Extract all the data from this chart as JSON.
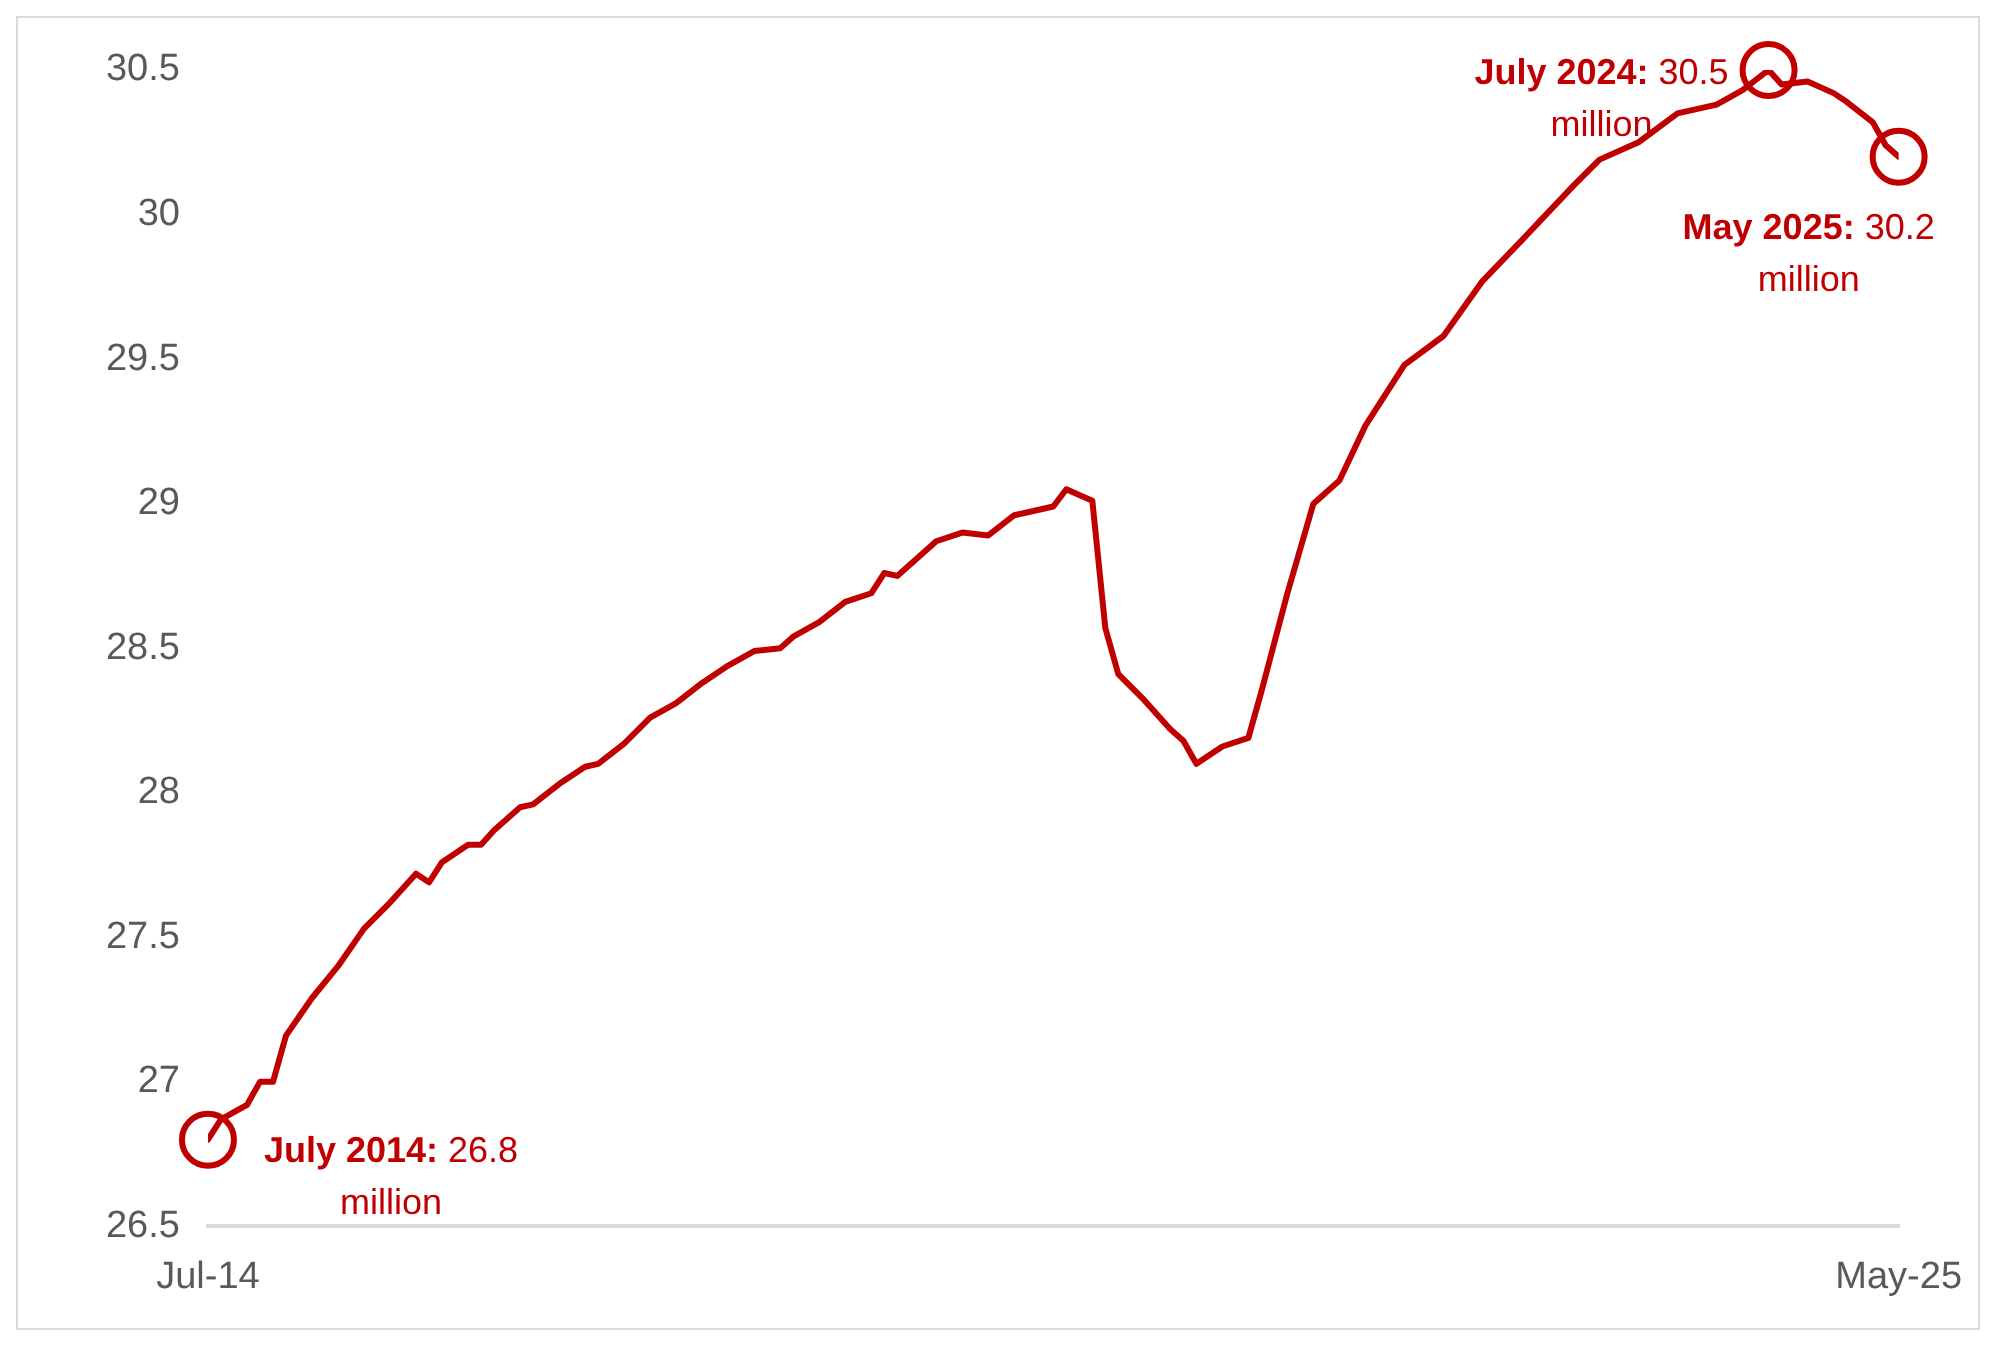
{
  "chart_data": {
    "type": "line",
    "series": [
      {
        "color": "#c00000",
        "x": [
          "2014-07",
          "2014-08",
          "2014-10",
          "2014-11",
          "2014-12",
          "2015-01",
          "2015-03",
          "2015-05",
          "2015-07",
          "2015-09",
          "2015-11",
          "2015-12",
          "2016-01",
          "2016-03",
          "2016-04",
          "2016-05",
          "2016-07",
          "2016-08",
          "2016-10",
          "2016-12",
          "2017-01",
          "2017-03",
          "2017-05",
          "2017-07",
          "2017-09",
          "2017-11",
          "2018-01",
          "2018-03",
          "2018-04",
          "2018-06",
          "2018-08",
          "2018-10",
          "2018-11",
          "2018-12",
          "2019-03",
          "2019-05",
          "2019-07",
          "2019-09",
          "2019-12",
          "2020-01",
          "2020-03",
          "2020-04",
          "2020-05",
          "2020-07",
          "2020-09",
          "2020-10",
          "2020-11",
          "2021-01",
          "2021-03",
          "2021-04",
          "2021-06",
          "2021-08",
          "2021-10",
          "2021-12",
          "2022-03",
          "2022-06",
          "2022-09",
          "2022-12",
          "2023-04",
          "2023-06",
          "2023-09",
          "2023-12",
          "2024-03",
          "2024-05",
          "2024-07",
          "2024-08",
          "2024-10",
          "2024-12",
          "2025-01",
          "2025-03",
          "2025-04",
          "2025-05"
        ],
        "values": [
          26.8,
          26.87,
          26.92,
          27.0,
          27.0,
          27.16,
          27.29,
          27.4,
          27.53,
          27.62,
          27.72,
          27.69,
          27.76,
          27.82,
          27.82,
          27.87,
          27.95,
          27.96,
          28.03,
          28.09,
          28.1,
          28.17,
          28.26,
          28.31,
          28.38,
          28.44,
          28.49,
          28.5,
          28.54,
          28.59,
          28.66,
          28.69,
          28.76,
          28.75,
          28.87,
          28.9,
          28.89,
          28.96,
          28.99,
          29.05,
          29.01,
          28.57,
          28.41,
          28.32,
          28.22,
          28.18,
          28.1,
          28.16,
          28.19,
          28.35,
          28.69,
          29.0,
          29.08,
          29.27,
          29.48,
          29.58,
          29.77,
          29.91,
          30.1,
          30.19,
          30.25,
          30.35,
          30.38,
          30.43,
          30.5,
          30.45,
          30.46,
          30.42,
          30.39,
          30.32,
          30.24,
          30.2
        ]
      }
    ],
    "xlim": [
      "2014-07",
      "2025-05"
    ],
    "xticks": [
      {
        "value": "2014-07",
        "label": "Jul-14"
      },
      {
        "value": "2025-05",
        "label": "May-25"
      }
    ],
    "ylim": [
      26.5,
      30.5
    ],
    "yticks": [
      26.5,
      27,
      27.5,
      28,
      28.5,
      29,
      29.5,
      30,
      30.5
    ],
    "grid": false,
    "legend": false,
    "marker": "none",
    "line_style": "solid",
    "annotations": [
      {
        "text": "July 2014: 26.8 million",
        "x": "2014-07",
        "y": 26.8
      },
      {
        "text": "July 2024: 30.5 million",
        "x": "2024-07",
        "y": 30.5
      },
      {
        "text": "May 2025: 30.2 million",
        "x": "2025-05",
        "y": 30.2
      }
    ]
  }
}
